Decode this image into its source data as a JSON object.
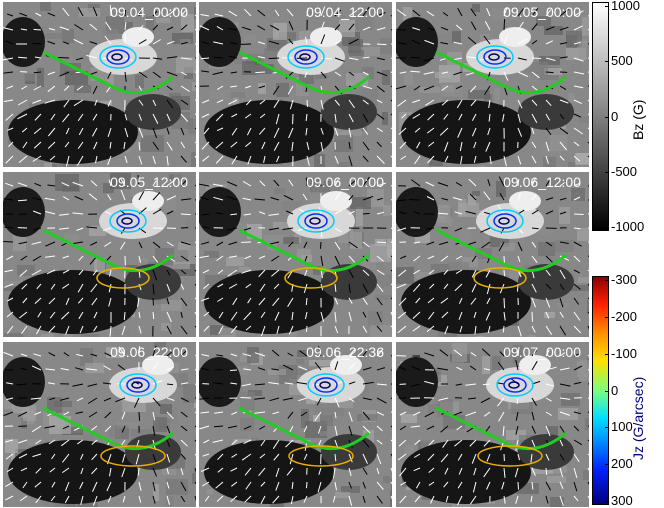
{
  "panels": [
    {
      "time": "09.04_00:00"
    },
    {
      "time": "09.04_12:00"
    },
    {
      "time": "09.05_00:00"
    },
    {
      "time": "09.05_12:00"
    },
    {
      "time": "09.06_00:00"
    },
    {
      "time": "09.06_12:00"
    },
    {
      "time": "09.06_22:00"
    },
    {
      "time": "09.06_22:36"
    },
    {
      "time": "09.07_00:00"
    }
  ],
  "bz_colorbar": {
    "title": "Bz (G)",
    "ticks": [
      "1000",
      "500",
      "0",
      "-500",
      "-1000"
    ],
    "colors": [
      "#ffffff",
      "#000000"
    ]
  },
  "jz_colorbar": {
    "title": "Jz (G/arcsec)",
    "ticks": [
      "-300",
      "-200",
      "-100",
      "0",
      "100",
      "200",
      "300"
    ],
    "title_color": "#000080"
  }
}
